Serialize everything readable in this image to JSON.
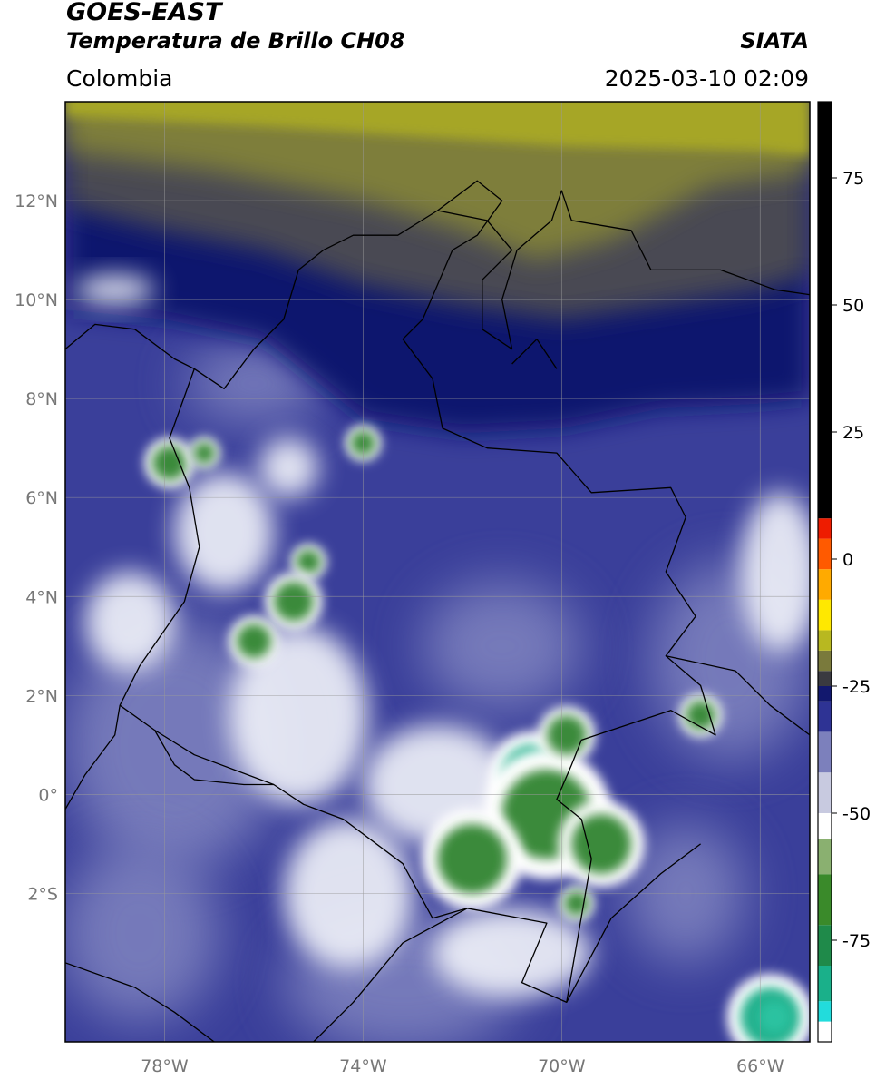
{
  "header": {
    "satellite": "GOES-EAST",
    "product": "Temperatura de Brillo CH08",
    "region": "Colombia",
    "organization": "SIATA",
    "timestamp": "2025-03-10 02:09"
  },
  "map": {
    "lon_range": [
      -80,
      -65
    ],
    "lat_range": [
      -5,
      14
    ],
    "lon_ticks": [
      {
        "value": -78,
        "label": "78°W"
      },
      {
        "value": -74,
        "label": "74°W"
      },
      {
        "value": -70,
        "label": "70°W"
      },
      {
        "value": -66,
        "label": "66°W"
      }
    ],
    "lat_ticks": [
      {
        "value": 12,
        "label": "12°N"
      },
      {
        "value": 10,
        "label": "10°N"
      },
      {
        "value": 8,
        "label": "8°N"
      },
      {
        "value": 6,
        "label": "6°N"
      },
      {
        "value": 4,
        "label": "4°N"
      },
      {
        "value": 2,
        "label": "2°N"
      },
      {
        "value": 0,
        "label": "0°"
      },
      {
        "value": -2,
        "label": "2°S"
      }
    ],
    "grid": true,
    "background_color": "#3a3f9a",
    "cold_cloud_regions": [
      {
        "lon": -77.9,
        "lat": 6.7,
        "size": 0.35,
        "class": "green"
      },
      {
        "lon": -77.2,
        "lat": 6.9,
        "size": 0.22,
        "class": "green"
      },
      {
        "lon": -74.0,
        "lat": 7.1,
        "size": 0.25,
        "class": "green"
      },
      {
        "lon": -75.1,
        "lat": 4.7,
        "size": 0.25,
        "class": "green"
      },
      {
        "lon": -75.4,
        "lat": 3.9,
        "size": 0.4,
        "class": "green"
      },
      {
        "lon": -76.2,
        "lat": 3.1,
        "size": 0.35,
        "class": "green"
      },
      {
        "lon": -70.6,
        "lat": 0.4,
        "size": 0.6,
        "class": "teal"
      },
      {
        "lon": -70.3,
        "lat": -0.4,
        "size": 0.9,
        "class": "green"
      },
      {
        "lon": -71.8,
        "lat": -1.3,
        "size": 0.7,
        "class": "green"
      },
      {
        "lon": -69.2,
        "lat": -1.0,
        "size": 0.6,
        "class": "green"
      },
      {
        "lon": -69.9,
        "lat": 1.2,
        "size": 0.4,
        "class": "green"
      },
      {
        "lon": -67.2,
        "lat": 1.6,
        "size": 0.3,
        "class": "green"
      },
      {
        "lon": -65.8,
        "lat": -4.5,
        "size": 0.6,
        "class": "teal"
      },
      {
        "lon": -69.7,
        "lat": -2.2,
        "size": 0.25,
        "class": "green"
      }
    ],
    "white_cloud_regions": [
      {
        "lon": -72.5,
        "lat": 0.2,
        "rx": 1.5,
        "ry": 1.2
      },
      {
        "lon": -75.3,
        "lat": 1.6,
        "rx": 1.4,
        "ry": 1.8
      },
      {
        "lon": -71.0,
        "lat": -3.2,
        "rx": 1.6,
        "ry": 0.9
      },
      {
        "lon": -74.3,
        "lat": -2.0,
        "rx": 1.3,
        "ry": 1.5
      },
      {
        "lon": -76.8,
        "lat": 5.3,
        "rx": 1.0,
        "ry": 1.2
      },
      {
        "lon": -65.6,
        "lat": 4.5,
        "rx": 0.8,
        "ry": 1.6
      },
      {
        "lon": -78.7,
        "lat": 3.5,
        "rx": 0.9,
        "ry": 1.0
      },
      {
        "lon": -79.0,
        "lat": 10.2,
        "rx": 0.8,
        "ry": 0.3
      },
      {
        "lon": -75.5,
        "lat": 6.6,
        "rx": 0.6,
        "ry": 0.6
      }
    ]
  },
  "colorbar": {
    "range": [
      -95,
      90
    ],
    "ticks": [
      {
        "value": 75,
        "label": "75"
      },
      {
        "value": 50,
        "label": "50"
      },
      {
        "value": 25,
        "label": "25"
      },
      {
        "value": 0,
        "label": "0"
      },
      {
        "value": -25,
        "label": "-25"
      },
      {
        "value": -50,
        "label": "-50"
      },
      {
        "value": -75,
        "label": "-75"
      }
    ],
    "segments": [
      {
        "from": -95,
        "to": -91,
        "color": "#ffffff"
      },
      {
        "from": -91,
        "to": -87,
        "color": "#22dcdc"
      },
      {
        "from": -87,
        "to": -80,
        "color": "#1ab08a"
      },
      {
        "from": -80,
        "to": -72,
        "color": "#1f8a4a"
      },
      {
        "from": -72,
        "to": -62,
        "color": "#3a8a2a"
      },
      {
        "from": -62,
        "to": -55,
        "color": "#8ab070"
      },
      {
        "from": -55,
        "to": -50,
        "color": "#ffffff"
      },
      {
        "from": -50,
        "to": -42,
        "color": "#c8cae0"
      },
      {
        "from": -42,
        "to": -34,
        "color": "#7c80bc"
      },
      {
        "from": -34,
        "to": -28,
        "color": "#2e3394"
      },
      {
        "from": -28,
        "to": -25,
        "color": "#12186e"
      },
      {
        "from": -25,
        "to": -22,
        "color": "#3a3a40"
      },
      {
        "from": -22,
        "to": -18,
        "color": "#7a7a3c"
      },
      {
        "from": -18,
        "to": -14,
        "color": "#b8b820"
      },
      {
        "from": -14,
        "to": -8,
        "color": "#ffe800"
      },
      {
        "from": -8,
        "to": -2,
        "color": "#ffaa00"
      },
      {
        "from": -2,
        "to": 4,
        "color": "#ff5a00"
      },
      {
        "from": 4,
        "to": 8,
        "color": "#ee1c00"
      },
      {
        "from": 8,
        "to": 90,
        "color": "#000000"
      }
    ]
  },
  "colors": {
    "deep_blue": "#0e146e",
    "mid_blue": "#3a3f9a",
    "light_blue": "#8084c0",
    "haze_grey": "#4a4a52",
    "olive": "#7e7e3a",
    "yellow_olive": "#a6a626",
    "cloud_white": "#eef0f8",
    "cold_green": "#3a8a3a",
    "cold_teal": "#22b08c",
    "border_line": "#000000"
  }
}
